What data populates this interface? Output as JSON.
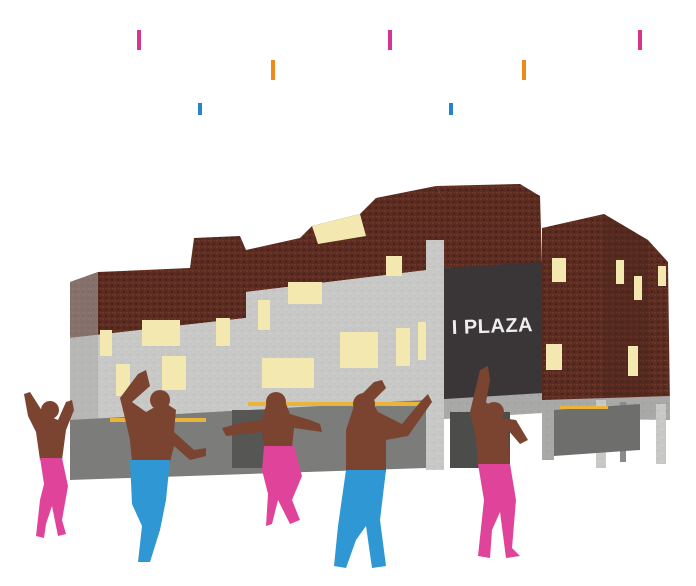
{
  "image": {
    "kind": "collage-illustration",
    "building_sign": "I PLAZA",
    "colors": {
      "brick": "#5a2c22",
      "brick_dark": "#43201a",
      "concrete": "#c4c4c2",
      "concrete_dark": "#9c9c9a",
      "window": "#f3e8b0",
      "dark_panel": "#3a3638",
      "magenta": "#d8348e",
      "orange": "#ee8a1c",
      "blue": "#2585c6",
      "skin": "#7a4430",
      "pants_pink": "#e0449a",
      "pants_blue": "#2f97d3"
    },
    "ticks": [
      {
        "color": "magenta",
        "count": 3
      },
      {
        "color": "orange",
        "count": 2
      },
      {
        "color": "blue",
        "count": 2
      }
    ],
    "dancers": [
      {
        "pants": "pink"
      },
      {
        "pants": "blue"
      },
      {
        "pants": "pink"
      },
      {
        "pants": "blue"
      },
      {
        "pants": "pink"
      }
    ]
  }
}
